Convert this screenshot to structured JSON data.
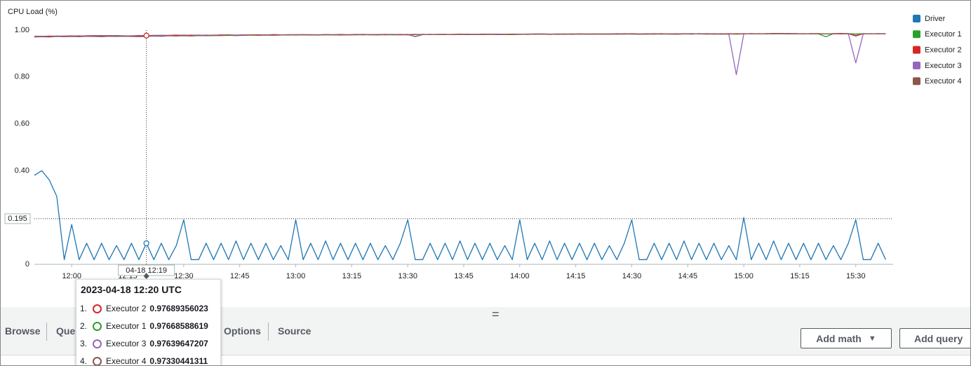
{
  "chart_data": {
    "type": "line",
    "title": "CPU Load (%)",
    "legend": "right",
    "x": [
      "11:50",
      "11:52",
      "11:54",
      "11:56",
      "11:58",
      "12:00",
      "12:02",
      "12:04",
      "12:06",
      "12:08",
      "12:10",
      "12:12",
      "12:14",
      "12:16",
      "12:18",
      "12:20",
      "12:22",
      "12:24",
      "12:26",
      "12:28",
      "12:30",
      "12:32",
      "12:34",
      "12:36",
      "12:38",
      "12:40",
      "12:42",
      "12:44",
      "12:46",
      "12:48",
      "12:50",
      "12:52",
      "12:54",
      "12:56",
      "12:58",
      "13:00",
      "13:02",
      "13:04",
      "13:06",
      "13:08",
      "13:10",
      "13:12",
      "13:14",
      "13:16",
      "13:18",
      "13:20",
      "13:22",
      "13:24",
      "13:26",
      "13:28",
      "13:30",
      "13:32",
      "13:34",
      "13:36",
      "13:38",
      "13:40",
      "13:42",
      "13:44",
      "13:46",
      "13:48",
      "13:50",
      "13:52",
      "13:54",
      "13:56",
      "13:58",
      "14:00",
      "14:02",
      "14:04",
      "14:06",
      "14:08",
      "14:10",
      "14:12",
      "14:14",
      "14:16",
      "14:18",
      "14:20",
      "14:22",
      "14:24",
      "14:26",
      "14:28",
      "14:30",
      "14:32",
      "14:34",
      "14:36",
      "14:38",
      "14:40",
      "14:42",
      "14:44",
      "14:46",
      "14:48",
      "14:50",
      "14:52",
      "14:54",
      "14:56",
      "14:58",
      "15:00",
      "15:02",
      "15:04",
      "15:06",
      "15:08",
      "15:10",
      "15:12",
      "15:14",
      "15:16",
      "15:18",
      "15:20",
      "15:22",
      "15:24",
      "15:26",
      "15:28",
      "15:30",
      "15:32",
      "15:34",
      "15:36",
      "15:38"
    ],
    "series": [
      {
        "name": "Driver",
        "color": "#1f77b4",
        "values": [
          0.38,
          0.4,
          0.36,
          0.29,
          0.02,
          0.17,
          0.02,
          0.09,
          0.02,
          0.09,
          0.02,
          0.08,
          0.02,
          0.09,
          0.02,
          0.09,
          0.02,
          0.09,
          0.02,
          0.08,
          0.19,
          0.02,
          0.02,
          0.09,
          0.02,
          0.09,
          0.02,
          0.1,
          0.02,
          0.09,
          0.02,
          0.09,
          0.02,
          0.08,
          0.02,
          0.19,
          0.02,
          0.09,
          0.02,
          0.1,
          0.02,
          0.09,
          0.02,
          0.09,
          0.02,
          0.09,
          0.02,
          0.08,
          0.02,
          0.09,
          0.19,
          0.02,
          0.02,
          0.09,
          0.02,
          0.09,
          0.02,
          0.1,
          0.02,
          0.09,
          0.02,
          0.09,
          0.02,
          0.08,
          0.02,
          0.19,
          0.02,
          0.09,
          0.02,
          0.1,
          0.02,
          0.09,
          0.02,
          0.09,
          0.02,
          0.09,
          0.02,
          0.08,
          0.02,
          0.09,
          0.19,
          0.02,
          0.02,
          0.09,
          0.02,
          0.09,
          0.02,
          0.1,
          0.02,
          0.09,
          0.02,
          0.09,
          0.02,
          0.08,
          0.02,
          0.2,
          0.02,
          0.09,
          0.02,
          0.1,
          0.02,
          0.09,
          0.02,
          0.09,
          0.02,
          0.09,
          0.02,
          0.08,
          0.02,
          0.09,
          0.19,
          0.02,
          0.02,
          0.09,
          0.02
        ]
      },
      {
        "name": "Executor 1",
        "color": "#2ca02c",
        "values": [
          0.972,
          0.974,
          0.973,
          0.975,
          0.974,
          0.975,
          0.976,
          0.975,
          0.976,
          0.977,
          0.976,
          0.977,
          0.976,
          0.975,
          0.977,
          0.97668588619,
          0.977,
          0.978,
          0.977,
          0.978,
          0.979,
          0.978,
          0.979,
          0.978,
          0.979,
          0.979,
          0.98,
          0.979,
          0.978,
          0.98,
          0.979,
          0.98,
          0.981,
          0.98,
          0.979,
          0.98,
          0.981,
          0.98,
          0.979,
          0.98,
          0.981,
          0.98,
          0.981,
          0.98,
          0.981,
          0.981,
          0.98,
          0.981,
          0.98,
          0.981,
          0.982,
          0.972,
          0.981,
          0.982,
          0.981,
          0.982,
          0.981,
          0.982,
          0.981,
          0.982,
          0.981,
          0.982,
          0.983,
          0.982,
          0.981,
          0.982,
          0.983,
          0.982,
          0.983,
          0.982,
          0.983,
          0.982,
          0.983,
          0.984,
          0.983,
          0.983,
          0.984,
          0.983,
          0.984,
          0.983,
          0.984,
          0.983,
          0.984,
          0.983,
          0.984,
          0.984,
          0.983,
          0.984,
          0.985,
          0.984,
          0.983,
          0.984,
          0.985,
          0.984,
          0.983,
          0.984,
          0.985,
          0.984,
          0.985,
          0.984,
          0.985,
          0.984,
          0.985,
          0.984,
          0.985,
          0.984,
          0.972,
          0.985,
          0.984,
          0.985,
          0.984,
          0.985,
          0.984,
          0.985,
          0.985
        ]
      },
      {
        "name": "Executor 2",
        "color": "#d62728",
        "values": [
          0.974,
          0.973,
          0.975,
          0.974,
          0.975,
          0.976,
          0.975,
          0.976,
          0.977,
          0.976,
          0.977,
          0.976,
          0.975,
          0.976,
          0.977,
          0.97689356023,
          0.978,
          0.977,
          0.978,
          0.979,
          0.978,
          0.979,
          0.977,
          0.979,
          0.978,
          0.98,
          0.979,
          0.978,
          0.98,
          0.979,
          0.98,
          0.979,
          0.981,
          0.98,
          0.98,
          0.981,
          0.98,
          0.981,
          0.98,
          0.981,
          0.98,
          0.982,
          0.98,
          0.981,
          0.982,
          0.98,
          0.981,
          0.982,
          0.981,
          0.98,
          0.981,
          0.982,
          0.981,
          0.982,
          0.981,
          0.981,
          0.982,
          0.983,
          0.982,
          0.981,
          0.982,
          0.983,
          0.982,
          0.981,
          0.982,
          0.983,
          0.982,
          0.983,
          0.984,
          0.983,
          0.982,
          0.983,
          0.984,
          0.983,
          0.984,
          0.984,
          0.983,
          0.984,
          0.983,
          0.984,
          0.985,
          0.984,
          0.983,
          0.984,
          0.985,
          0.983,
          0.984,
          0.985,
          0.984,
          0.985,
          0.984,
          0.983,
          0.984,
          0.985,
          0.984,
          0.985,
          0.984,
          0.985,
          0.984,
          0.985,
          0.986,
          0.985,
          0.984,
          0.985,
          0.984,
          0.985,
          0.984,
          0.985,
          0.986,
          0.985,
          0.975,
          0.985,
          0.984,
          0.985,
          0.984
        ]
      },
      {
        "name": "Executor 3",
        "color": "#9467bd",
        "values": [
          0.973,
          0.974,
          0.972,
          0.975,
          0.974,
          0.975,
          0.976,
          0.974,
          0.976,
          0.975,
          0.977,
          0.976,
          0.975,
          0.976,
          0.975,
          0.97639647207,
          0.977,
          0.978,
          0.977,
          0.976,
          0.978,
          0.977,
          0.978,
          0.979,
          0.978,
          0.979,
          0.978,
          0.979,
          0.98,
          0.979,
          0.978,
          0.98,
          0.979,
          0.98,
          0.981,
          0.98,
          0.981,
          0.98,
          0.979,
          0.981,
          0.98,
          0.981,
          0.98,
          0.982,
          0.981,
          0.981,
          0.982,
          0.98,
          0.981,
          0.982,
          0.981,
          0.973,
          0.982,
          0.981,
          0.982,
          0.982,
          0.981,
          0.982,
          0.983,
          0.982,
          0.981,
          0.982,
          0.983,
          0.982,
          0.983,
          0.983,
          0.982,
          0.983,
          0.984,
          0.983,
          0.984,
          0.983,
          0.982,
          0.984,
          0.983,
          0.984,
          0.983,
          0.984,
          0.985,
          0.984,
          0.983,
          0.984,
          0.985,
          0.984,
          0.983,
          0.984,
          0.985,
          0.984,
          0.983,
          0.985,
          0.984,
          0.985,
          0.984,
          0.983,
          0.81,
          0.984,
          0.985,
          0.984,
          0.985,
          0.984,
          0.985,
          0.986,
          0.985,
          0.984,
          0.985,
          0.985,
          0.984,
          0.985,
          0.984,
          0.985,
          0.86,
          0.984,
          0.985,
          0.984,
          0.985
        ]
      },
      {
        "name": "Executor 4",
        "color": "#8c564b",
        "values": [
          0.971,
          0.972,
          0.971,
          0.973,
          0.972,
          0.973,
          0.972,
          0.974,
          0.973,
          0.972,
          0.974,
          0.973,
          0.974,
          0.973,
          0.972,
          0.97330441311,
          0.975,
          0.974,
          0.976,
          0.975,
          0.976,
          0.975,
          0.977,
          0.976,
          0.977,
          0.977,
          0.978,
          0.977,
          0.978,
          0.979,
          0.978,
          0.979,
          0.978,
          0.979,
          0.98,
          0.979,
          0.98,
          0.979,
          0.98,
          0.981,
          0.98,
          0.979,
          0.98,
          0.981,
          0.98,
          0.981,
          0.98,
          0.981,
          0.982,
          0.981,
          0.98,
          0.981,
          0.982,
          0.981,
          0.982,
          0.982,
          0.981,
          0.982,
          0.981,
          0.982,
          0.983,
          0.982,
          0.981,
          0.982,
          0.983,
          0.982,
          0.983,
          0.984,
          0.983,
          0.982,
          0.983,
          0.984,
          0.983,
          0.984,
          0.983,
          0.983,
          0.984,
          0.983,
          0.984,
          0.985,
          0.984,
          0.983,
          0.984,
          0.985,
          0.984,
          0.984,
          0.983,
          0.984,
          0.985,
          0.984,
          0.985,
          0.984,
          0.983,
          0.984,
          0.985,
          0.984,
          0.985,
          0.984,
          0.985,
          0.986,
          0.985,
          0.984,
          0.985,
          0.984,
          0.985,
          0.985,
          0.984,
          0.985,
          0.984,
          0.985,
          0.978,
          0.985,
          0.984,
          0.985,
          0.984
        ]
      }
    ],
    "xlim": [
      "11:50",
      "15:40"
    ],
    "xticks": [
      "12:00",
      "12:15",
      "12:30",
      "12:45",
      "13:00",
      "13:15",
      "13:30",
      "13:45",
      "14:00",
      "14:15",
      "14:30",
      "14:45",
      "15:00",
      "15:15",
      "15:30"
    ],
    "ylim": [
      0,
      1.1
    ],
    "yticks": [
      0,
      {
        "value": 0.4,
        "label": "0.40"
      },
      {
        "value": 0.6,
        "label": "0.60"
      },
      {
        "value": 0.8,
        "label": "0.80"
      },
      {
        "value": 1,
        "label": "1.00"
      }
    ],
    "grid": false,
    "crosshair": {
      "y": 0.195,
      "x_label": "04-18 12:19"
    }
  },
  "tooltip": {
    "title": "2023-04-18 12:20 UTC",
    "ranks": [
      "1.",
      "2.",
      "3.",
      "4."
    ]
  },
  "ui": {
    "handle": "=",
    "tabs": [
      "Browse",
      "Que",
      "Options",
      "Source"
    ],
    "buttons": [
      "Add math",
      "Add query"
    ]
  }
}
